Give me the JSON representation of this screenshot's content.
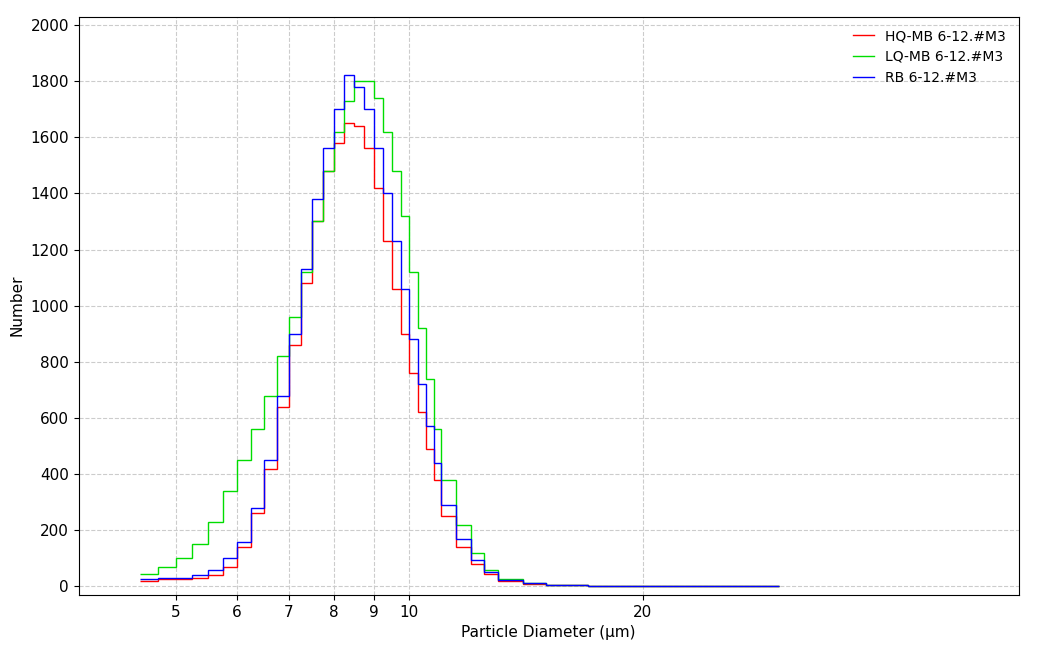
{
  "chart_data": {
    "type": "histogram",
    "x_label": "Particle Diameter (µm)",
    "y_label": "Number",
    "bins": [
      4.5,
      4.75,
      5.0,
      5.25,
      5.5,
      5.75,
      6.0,
      6.25,
      6.5,
      6.75,
      7.0,
      7.25,
      7.5,
      7.75,
      8.0,
      8.25,
      8.5,
      8.75,
      9.0,
      9.25,
      9.5,
      9.75,
      10.0,
      10.25,
      10.5,
      10.75,
      11.0,
      11.5,
      12.0,
      12.5,
      13.0,
      14.0,
      15.0,
      17.0,
      20.0,
      25.0,
      30.0
    ],
    "series": [
      {
        "name": "HQ-MB 6-12.#M3",
        "color": "#ff0000",
        "values": [
          20,
          25,
          25,
          30,
          40,
          70,
          140,
          260,
          420,
          640,
          860,
          1080,
          1300,
          1480,
          1580,
          1650,
          1640,
          1560,
          1420,
          1230,
          1060,
          900,
          760,
          620,
          490,
          380,
          250,
          140,
          80,
          45,
          20,
          10,
          5,
          3,
          1,
          0
        ]
      },
      {
        "name": "LQ-MB 6-12.#M3",
        "color": "#00dd00",
        "values": [
          45,
          70,
          100,
          150,
          230,
          340,
          450,
          560,
          680,
          820,
          960,
          1120,
          1300,
          1480,
          1620,
          1730,
          1800,
          1800,
          1740,
          1620,
          1480,
          1320,
          1120,
          920,
          740,
          560,
          380,
          220,
          120,
          60,
          25,
          12,
          6,
          3,
          1,
          0
        ]
      },
      {
        "name": "RB 6-12.#M3",
        "color": "#0000ff",
        "values": [
          25,
          30,
          30,
          40,
          60,
          100,
          160,
          280,
          450,
          680,
          900,
          1130,
          1380,
          1560,
          1700,
          1820,
          1780,
          1700,
          1560,
          1400,
          1230,
          1060,
          880,
          720,
          570,
          440,
          290,
          170,
          95,
          50,
          22,
          12,
          6,
          3,
          1,
          0
        ]
      }
    ],
    "log": "x",
    "xlim": [
      3.75,
      61
    ],
    "xticks": [
      5,
      6,
      7,
      8,
      9,
      10,
      20
    ],
    "ylim": [
      -30,
      2030
    ],
    "yticks": [
      0,
      200,
      400,
      600,
      800,
      1000,
      1200,
      1400,
      1600,
      1800,
      2000
    ],
    "grid": true,
    "legend": "upper right"
  }
}
